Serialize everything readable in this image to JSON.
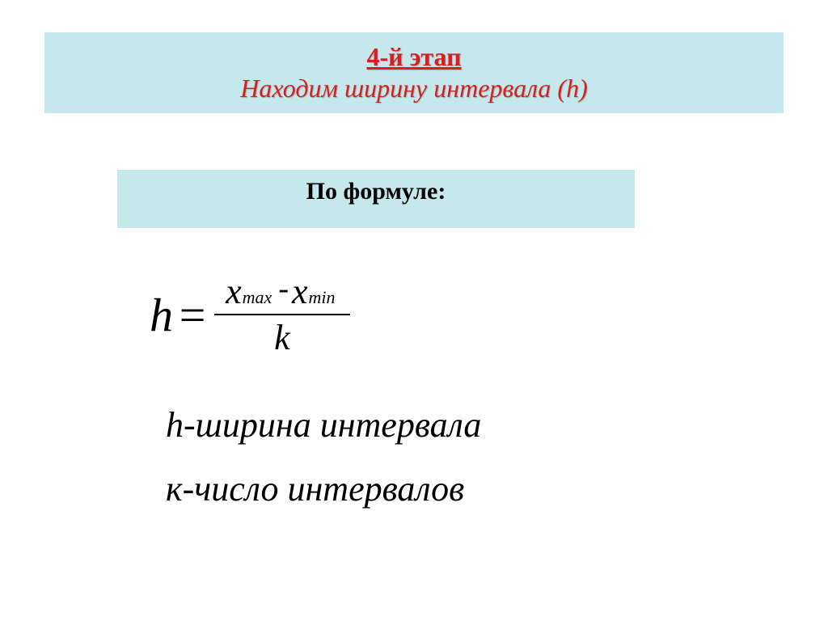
{
  "header": {
    "title": "4-й этап",
    "subtitle": "Находим ширину интервала (h)"
  },
  "formula": {
    "label": "По формуле:",
    "left_variable": "h",
    "equals": "=",
    "numerator": {
      "var1": "х",
      "sub1": "max",
      "operator": "-",
      "var2": "х",
      "sub2": "min"
    },
    "denominator": "k"
  },
  "definitions": {
    "line1": "h-ширина интервала",
    "line2": "к-число интервалов"
  },
  "colors": {
    "box_background": "#c5e8ed",
    "title_color": "#d62020",
    "text_color": "#000000",
    "page_background": "#ffffff"
  },
  "typography": {
    "title_fontsize": 32,
    "label_fontsize": 30,
    "formula_fontsize": 54,
    "definition_fontsize": 44,
    "font_family": "Times New Roman"
  }
}
